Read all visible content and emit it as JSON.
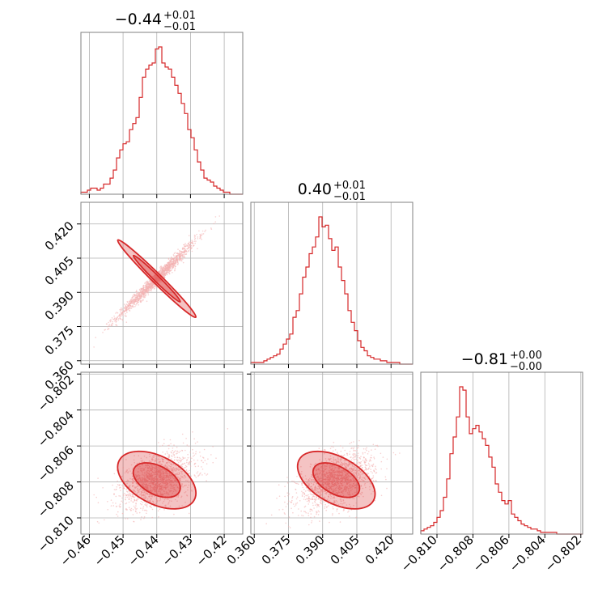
{
  "chart_data": {
    "type": "corner",
    "color": "#d62728",
    "grid": true,
    "params": [
      {
        "title_main": "−0.44",
        "err_plus": "+0.01",
        "err_minus": "−0.01",
        "range": [
          -0.4625,
          -0.4145
        ],
        "mean": -0.44,
        "sd": 0.0058,
        "ticks": [
          -0.46,
          -0.45,
          -0.44,
          -0.43,
          -0.42
        ],
        "tick_labels": [
          "−0.46",
          "−0.45",
          "−0.44",
          "−0.43",
          "−0.42"
        ]
      },
      {
        "title_main": "0.40",
        "err_plus": "+0.01",
        "err_minus": "−0.01",
        "range": [
          0.3585,
          0.4295
        ],
        "mean": 0.396,
        "sd": 0.0085,
        "ticks": [
          0.36,
          0.375,
          0.39,
          0.405,
          0.42
        ],
        "tick_labels": [
          "0.360",
          "0.375",
          "0.390",
          "0.405",
          "0.420"
        ]
      },
      {
        "title_main": "−0.81",
        "err_plus": "+0.00",
        "err_minus": "−0.00",
        "range": [
          -0.8109,
          -0.8019
        ],
        "mean": -0.8079,
        "sd": 0.0008,
        "ticks": [
          -0.81,
          -0.808,
          -0.806,
          -0.804,
          -0.802
        ],
        "tick_labels": [
          "−0.810",
          "−0.808",
          "−0.806",
          "−0.804",
          "−0.802"
        ]
      }
    ],
    "hist1d": [
      {
        "bin_start": -0.4625,
        "bin_width": 0.00096,
        "counts": [
          1,
          1,
          2,
          3,
          3,
          2,
          3,
          5,
          5,
          8,
          12,
          18,
          22,
          25,
          26,
          32,
          35,
          38,
          48,
          58,
          62,
          64,
          65,
          72,
          73,
          65,
          63,
          62,
          58,
          54,
          50,
          45,
          40,
          32,
          28,
          22,
          16,
          12,
          8,
          7,
          6,
          4,
          3,
          2,
          1,
          1,
          0,
          0,
          0,
          0
        ]
      },
      {
        "bin_start": 0.3585,
        "bin_width": 0.00142,
        "counts": [
          1,
          1,
          1,
          1,
          2,
          3,
          4,
          5,
          6,
          9,
          12,
          15,
          18,
          28,
          32,
          42,
          52,
          58,
          66,
          70,
          76,
          88,
          82,
          83,
          75,
          68,
          70,
          58,
          50,
          42,
          32,
          25,
          20,
          14,
          10,
          8,
          5,
          4,
          3,
          3,
          2,
          2,
          1,
          1,
          1,
          1,
          0,
          0,
          0,
          0
        ]
      },
      {
        "bin_start": -0.8109,
        "bin_width": 0.00018,
        "counts": [
          2,
          3,
          4,
          5,
          7,
          10,
          14,
          22,
          33,
          48,
          58,
          70,
          88,
          86,
          70,
          60,
          63,
          65,
          61,
          57,
          53,
          46,
          40,
          30,
          25,
          20,
          18,
          20,
          12,
          10,
          8,
          6,
          5,
          4,
          3,
          3,
          2,
          1,
          1,
          1,
          1,
          1,
          0,
          0,
          0,
          0,
          0,
          0,
          0,
          0
        ]
      }
    ],
    "correlations": {
      "x0_x1": 0.985,
      "x0_x2": 0.45,
      "x1_x2": 0.48
    },
    "scatter_samples": 1500
  }
}
